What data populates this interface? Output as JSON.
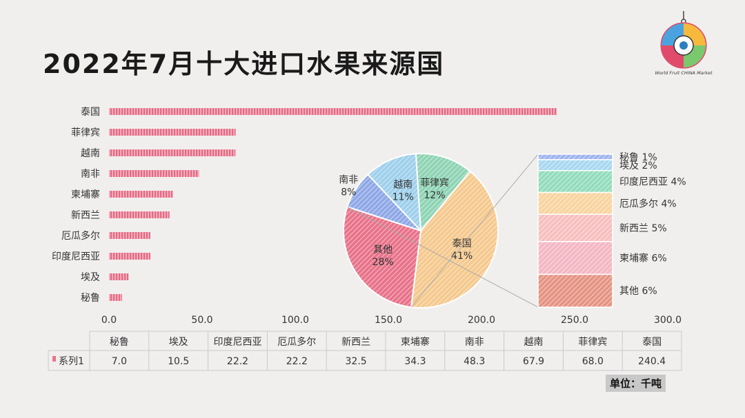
{
  "title": "2022年7月十大进口水果来源国",
  "unit_label": "单位：千吨",
  "logo_text": "World Fruit CHINA Market",
  "colors": {
    "bar": "#e8738a",
    "pie_thailand": "#f5c98e",
    "pie_other": "#e8738a",
    "pie_vietnam": "#9fd0ec",
    "pie_philippines": "#8fd4b4",
    "pie_south_africa": "#8fa8e6"
  },
  "chart_data": [
    {
      "type": "bar",
      "orientation": "horizontal",
      "categories": [
        "泰国",
        "菲律宾",
        "越南",
        "南非",
        "柬埔寨",
        "新西兰",
        "厄瓜多尔",
        "印度尼西亚",
        "埃及",
        "秘鲁"
      ],
      "series": [
        {
          "name": "系列1",
          "values": [
            240.4,
            68.0,
            67.9,
            48.3,
            34.3,
            32.5,
            22.2,
            22.2,
            10.5,
            7.0
          ]
        }
      ],
      "xlim": [
        0,
        300
      ],
      "x_ticks": [
        "0.0",
        "50.0",
        "100.0",
        "150.0",
        "200.0",
        "250.0",
        "300.0"
      ],
      "grid": false
    },
    {
      "type": "pie",
      "slices": [
        {
          "label": "泰国",
          "value": 41,
          "text": "41%"
        },
        {
          "label": "其他",
          "value": 28,
          "text": "28%"
        },
        {
          "label": "南非",
          "value": 8,
          "text": "8%"
        },
        {
          "label": "越南",
          "value": 11,
          "text": "11%"
        },
        {
          "label": "菲律宾",
          "value": 12,
          "text": "12%"
        }
      ],
      "other_breakdown": [
        {
          "label": "秘鲁",
          "value": 1,
          "text": "1%"
        },
        {
          "label": "埃及",
          "value": 2,
          "text": "2%"
        },
        {
          "label": "印度尼西亚",
          "value": 4,
          "text": "4%"
        },
        {
          "label": "厄瓜多尔",
          "value": 4,
          "text": "4%"
        },
        {
          "label": "新西兰",
          "value": 5,
          "text": "5%"
        },
        {
          "label": "柬埔寨",
          "value": 6,
          "text": "6%"
        },
        {
          "label": "其他",
          "value": 6,
          "text": "6%"
        }
      ]
    },
    {
      "type": "table",
      "columns": [
        "秘鲁",
        "埃及",
        "印度尼西亚",
        "厄瓜多尔",
        "新西兰",
        "柬埔寨",
        "南非",
        "越南",
        "菲律宾",
        "泰国"
      ],
      "row_label": "系列1",
      "values": [
        "7.0",
        "10.5",
        "22.2",
        "22.2",
        "32.5",
        "34.3",
        "48.3",
        "67.9",
        "68.0",
        "240.4"
      ]
    }
  ]
}
